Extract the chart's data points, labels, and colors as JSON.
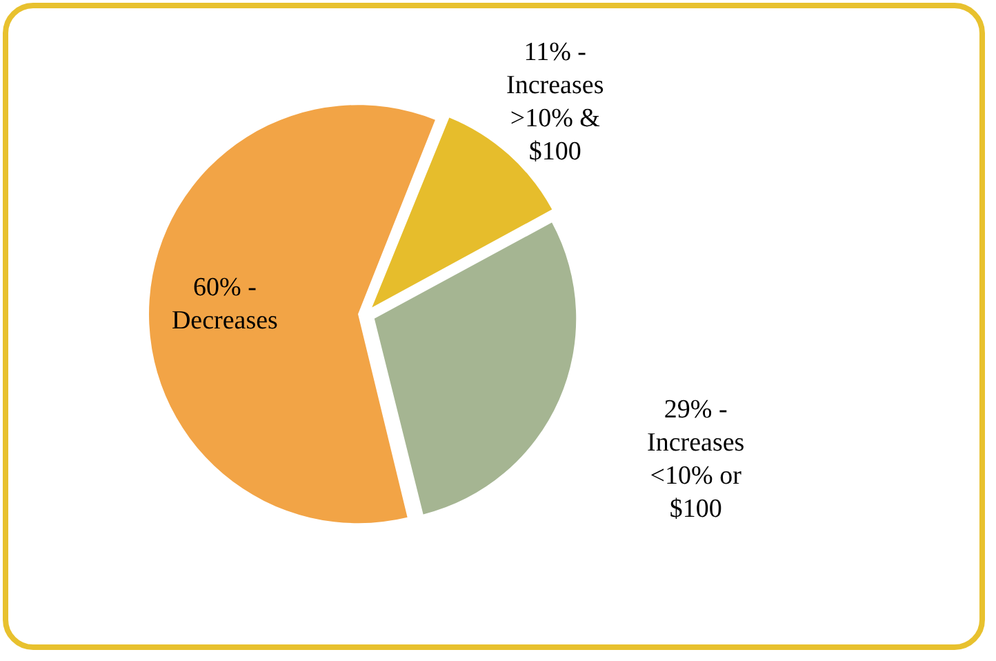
{
  "chart_data": {
    "type": "pie",
    "categories": [
      "Increases >10% & $100",
      "Increases <10% or $100",
      "Decreases"
    ],
    "values": [
      11,
      29,
      60
    ],
    "value_labels": [
      "11% -",
      "29% -",
      "60% -"
    ],
    "colors": [
      "#e6bd2c",
      "#a5b592",
      "#f2a446"
    ],
    "legend": false
  }
}
